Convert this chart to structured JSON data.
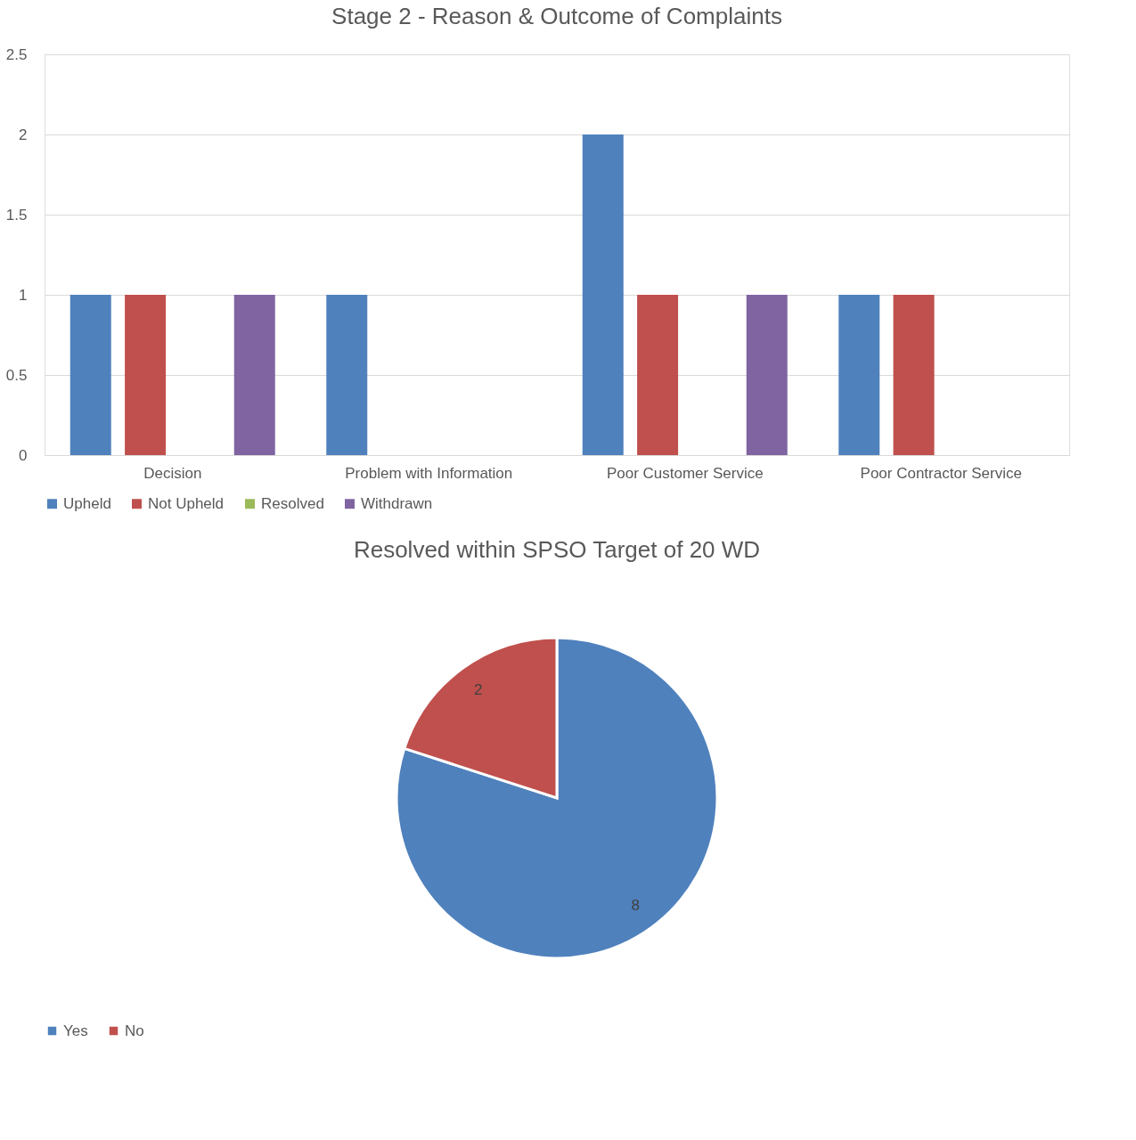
{
  "chart_data": [
    {
      "type": "bar",
      "title": "Stage 2 - Reason & Outcome of Complaints",
      "categories": [
        "Decision",
        "Problem with Information",
        "Poor Customer Service",
        "Poor Contractor Service"
      ],
      "series": [
        {
          "name": "Upheld",
          "color": "#4f81bd",
          "values": [
            1,
            1,
            2,
            1
          ]
        },
        {
          "name": "Not Upheld",
          "color": "#c0504d",
          "values": [
            1,
            null,
            1,
            1
          ]
        },
        {
          "name": "Resolved",
          "color": "#9bbb59",
          "values": [
            null,
            null,
            null,
            null
          ]
        },
        {
          "name": "Withdrawn",
          "color": "#8064a2",
          "values": [
            1,
            null,
            1,
            null
          ]
        }
      ],
      "ylim": [
        0,
        2.5
      ],
      "yticks": [
        0,
        0.5,
        1,
        1.5,
        2,
        2.5
      ],
      "grid": "y",
      "legend": "bottom"
    },
    {
      "type": "pie",
      "title": "Resolved within SPSO Target of 20 WD",
      "categories": [
        "Yes",
        "No"
      ],
      "values": [
        8,
        2
      ],
      "colors": [
        "#4f81bd",
        "#c0504d"
      ],
      "data_labels": true,
      "legend": "bottom"
    }
  ]
}
